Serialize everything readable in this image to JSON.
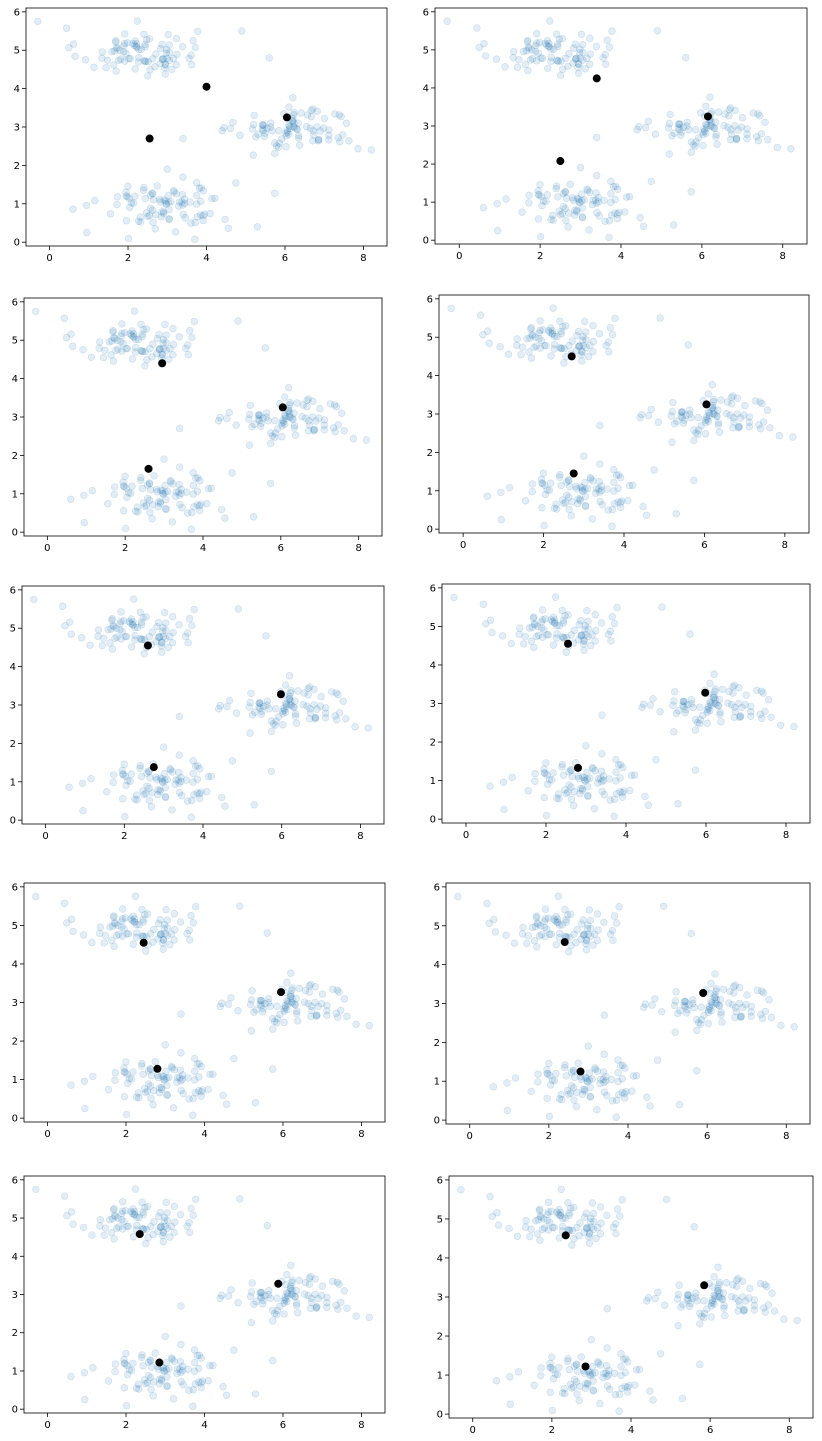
{
  "colors": {
    "background": "#ffffff",
    "points": "#1f77b4",
    "centroids": "#000000",
    "axes": "#000000"
  },
  "chart_data": [
    {
      "type": "scatter",
      "panel": 1,
      "xlim": [
        -0.6,
        8.6
      ],
      "ylim": [
        -0.1,
        6.1
      ],
      "xticks": [
        "0",
        "2",
        "4",
        "6",
        "8"
      ],
      "yticks": [
        "0",
        "1",
        "2",
        "3",
        "4",
        "5",
        "6"
      ],
      "grid": false,
      "series": [
        {
          "role": "observations"
        },
        {
          "role": "centroids",
          "x": [
            4.0,
            2.55,
            6.05
          ],
          "y": [
            4.05,
            2.7,
            3.25
          ]
        }
      ]
    },
    {
      "type": "scatter",
      "panel": 2,
      "xlim": [
        -0.6,
        8.6
      ],
      "ylim": [
        -0.1,
        6.1
      ],
      "xticks": [
        "0",
        "2",
        "4",
        "6",
        "8"
      ],
      "yticks": [
        "0",
        "1",
        "2",
        "3",
        "4",
        "5",
        "6"
      ],
      "grid": false,
      "series": [
        {
          "role": "observations"
        },
        {
          "role": "centroids",
          "x": [
            3.4,
            2.5,
            6.15
          ],
          "y": [
            4.25,
            2.08,
            3.25
          ]
        }
      ]
    },
    {
      "type": "scatter",
      "panel": 3,
      "xlim": [
        -0.6,
        8.6
      ],
      "ylim": [
        -0.1,
        6.1
      ],
      "xticks": [
        "0",
        "2",
        "4",
        "6",
        "8"
      ],
      "yticks": [
        "0",
        "1",
        "2",
        "3",
        "4",
        "5",
        "6"
      ],
      "grid": false,
      "series": [
        {
          "role": "observations"
        },
        {
          "role": "centroids",
          "x": [
            2.95,
            2.6,
            6.05
          ],
          "y": [
            4.4,
            1.65,
            3.25
          ]
        }
      ]
    },
    {
      "type": "scatter",
      "panel": 4,
      "xlim": [
        -0.6,
        8.6
      ],
      "ylim": [
        -0.1,
        6.1
      ],
      "xticks": [
        "0",
        "2",
        "4",
        "6",
        "8"
      ],
      "yticks": [
        "0",
        "1",
        "2",
        "3",
        "4",
        "5",
        "6"
      ],
      "grid": false,
      "series": [
        {
          "role": "observations"
        },
        {
          "role": "centroids",
          "x": [
            2.7,
            2.75,
            6.05
          ],
          "y": [
            4.5,
            1.45,
            3.25
          ]
        }
      ]
    },
    {
      "type": "scatter",
      "panel": 5,
      "xlim": [
        -0.6,
        8.6
      ],
      "ylim": [
        -0.1,
        6.1
      ],
      "xticks": [
        "0",
        "2",
        "4",
        "6",
        "8"
      ],
      "yticks": [
        "0",
        "1",
        "2",
        "3",
        "4",
        "5",
        "6"
      ],
      "grid": false,
      "series": [
        {
          "role": "observations"
        },
        {
          "role": "centroids",
          "x": [
            2.6,
            2.75,
            5.98
          ],
          "y": [
            4.55,
            1.38,
            3.28
          ]
        }
      ]
    },
    {
      "type": "scatter",
      "panel": 6,
      "xlim": [
        -0.6,
        8.6
      ],
      "ylim": [
        -0.1,
        6.1
      ],
      "xticks": [
        "0",
        "2",
        "4",
        "6",
        "8"
      ],
      "yticks": [
        "0",
        "1",
        "2",
        "3",
        "4",
        "5",
        "6"
      ],
      "grid": false,
      "series": [
        {
          "role": "observations"
        },
        {
          "role": "centroids",
          "x": [
            2.55,
            2.8,
            5.98
          ],
          "y": [
            4.55,
            1.33,
            3.28
          ]
        }
      ]
    },
    {
      "type": "scatter",
      "panel": 7,
      "xlim": [
        -0.6,
        8.6
      ],
      "ylim": [
        -0.1,
        6.1
      ],
      "xticks": [
        "0",
        "2",
        "4",
        "6",
        "8"
      ],
      "yticks": [
        "0",
        "1",
        "2",
        "3",
        "4",
        "5",
        "6"
      ],
      "grid": false,
      "series": [
        {
          "role": "observations"
        },
        {
          "role": "centroids",
          "x": [
            2.45,
            2.8,
            5.95
          ],
          "y": [
            4.55,
            1.28,
            3.27
          ]
        }
      ]
    },
    {
      "type": "scatter",
      "panel": 8,
      "xlim": [
        -0.6,
        8.6
      ],
      "ylim": [
        -0.1,
        6.1
      ],
      "xticks": [
        "0",
        "2",
        "4",
        "6",
        "8"
      ],
      "yticks": [
        "0",
        "1",
        "2",
        "3",
        "4",
        "5",
        "6"
      ],
      "grid": false,
      "series": [
        {
          "role": "observations"
        },
        {
          "role": "centroids",
          "x": [
            2.4,
            2.8,
            5.9
          ],
          "y": [
            4.58,
            1.25,
            3.27
          ]
        }
      ]
    },
    {
      "type": "scatter",
      "panel": 9,
      "xlim": [
        -0.6,
        8.6
      ],
      "ylim": [
        -0.1,
        6.1
      ],
      "xticks": [
        "0",
        "2",
        "4",
        "6",
        "8"
      ],
      "yticks": [
        "0",
        "1",
        "2",
        "3",
        "4",
        "5",
        "6"
      ],
      "grid": false,
      "series": [
        {
          "role": "observations"
        },
        {
          "role": "centroids",
          "x": [
            2.35,
            2.85,
            5.88
          ],
          "y": [
            4.58,
            1.22,
            3.28
          ]
        }
      ]
    },
    {
      "type": "scatter",
      "panel": 10,
      "xlim": [
        -0.6,
        8.6
      ],
      "ylim": [
        -0.1,
        6.1
      ],
      "xticks": [
        "0",
        "2",
        "4",
        "6",
        "8"
      ],
      "yticks": [
        "0",
        "1",
        "2",
        "3",
        "4",
        "5",
        "6"
      ],
      "grid": false,
      "series": [
        {
          "role": "observations"
        },
        {
          "role": "centroids",
          "x": [
            2.35,
            2.85,
            5.85
          ],
          "y": [
            4.58,
            1.22,
            3.3
          ]
        }
      ]
    }
  ]
}
